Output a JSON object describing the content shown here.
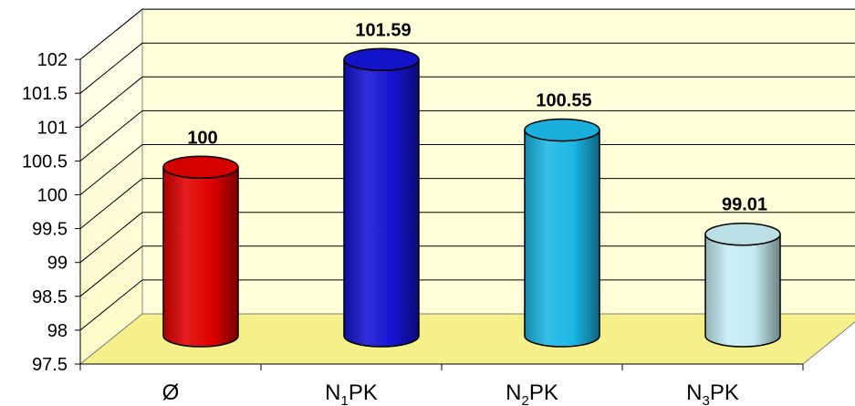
{
  "chart_data": {
    "type": "bar",
    "style": "3d-cylinder",
    "categories": [
      {
        "main": "Ø",
        "sub": "",
        "suffix": ""
      },
      {
        "main": "N",
        "sub": "1",
        "suffix": "PK"
      },
      {
        "main": "N",
        "sub": "2",
        "suffix": "PK"
      },
      {
        "main": "N",
        "sub": "3",
        "suffix": "PK"
      }
    ],
    "values": [
      100,
      101.59,
      100.55,
      99.01
    ],
    "data_labels": [
      "100",
      "101.59",
      "100.55",
      "99.01"
    ],
    "colors": [
      "#e00000",
      "#1414d2",
      "#1ab7e6",
      "#c4ecf2"
    ],
    "ylim": [
      97.5,
      102
    ],
    "yticks": [
      "97.5",
      "98",
      "98.5",
      "99",
      "99.5",
      "100",
      "100.5",
      "101",
      "101.5",
      "102"
    ],
    "title": "",
    "xlabel": "",
    "ylabel": "",
    "grid": true,
    "legend": "none",
    "background": "#ffffd9",
    "floor_color": "#f5f08a"
  }
}
